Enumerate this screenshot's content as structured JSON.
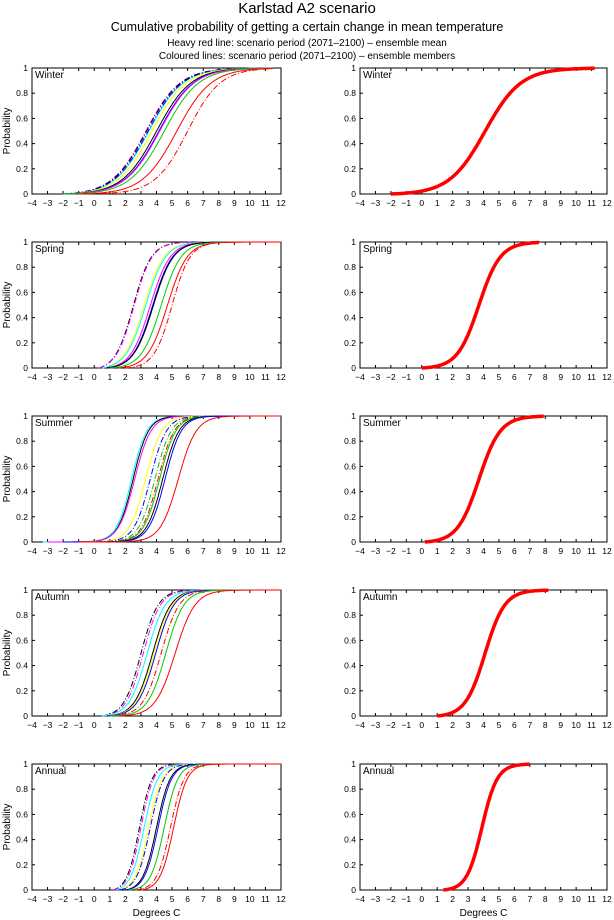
{
  "header": {
    "title": "Karlstad A2 scenario",
    "subtitle": "Cumulative probability of getting a certain change in mean temperature",
    "note_mean": "Heavy red line: scenario period (2071–2100) – ensemble mean",
    "note_members": "Coloured lines: scenario period (2071–2100) – ensemble members"
  },
  "axes_common": {
    "ylabel": "Probability",
    "xlabel": "Degrees C",
    "xlim": [
      -4,
      12
    ],
    "ylim": [
      0,
      1
    ],
    "xticks": [
      "−4",
      "−3",
      "−2",
      "−1",
      "0",
      "1",
      "2",
      "3",
      "4",
      "5",
      "6",
      "7",
      "8",
      "9",
      "10",
      "11",
      "12"
    ],
    "yticks": [
      "0",
      "0.2",
      "0.4",
      "0.6",
      "0.8",
      "1"
    ],
    "member_colors": [
      "#ff00ff",
      "#00ffff",
      "#0000ff",
      "#000000",
      "#ffff00",
      "#00cc00",
      "#ff0000"
    ],
    "mean_color": "#ff0000"
  },
  "chart_data": [
    {
      "type": "line",
      "title": "Winter",
      "panel": "ensemble-members",
      "xlabel": "",
      "ylabel": "Probability",
      "xlim": [
        -4,
        12
      ],
      "ylim": [
        0,
        1
      ],
      "series": [
        {
          "name": "member-dash-magenta",
          "color": "#ff00ff",
          "style": "dashdot",
          "median": 3.3,
          "spread": 1.9,
          "xmin": -2,
          "xmax": 11.5
        },
        {
          "name": "member-dash-black",
          "color": "#000000",
          "style": "dashdot",
          "median": 3.35,
          "spread": 1.9,
          "xmin": -2,
          "xmax": 11.5
        },
        {
          "name": "member-cyan",
          "color": "#00ffff",
          "style": "solid",
          "median": 3.5,
          "spread": 1.9,
          "xmin": -2,
          "xmax": 11.5
        },
        {
          "name": "member-dash-blue",
          "color": "#0000ff",
          "style": "dashdot",
          "median": 3.45,
          "spread": 1.9,
          "xmin": -2,
          "xmax": 11.5
        },
        {
          "name": "member-yellow",
          "color": "#ffff00",
          "style": "solid",
          "median": 3.7,
          "spread": 1.9,
          "xmin": -2,
          "xmax": 11.5
        },
        {
          "name": "member-black",
          "color": "#000000",
          "style": "solid",
          "median": 4.0,
          "spread": 1.9,
          "xmin": -2,
          "xmax": 11.5
        },
        {
          "name": "member-blue",
          "color": "#0000ff",
          "style": "solid",
          "median": 4.15,
          "spread": 1.9,
          "xmin": -2,
          "xmax": 11.5
        },
        {
          "name": "member-magenta",
          "color": "#ff00ff",
          "style": "solid",
          "median": 4.2,
          "spread": 1.9,
          "xmin": -2,
          "xmax": 11.5
        },
        {
          "name": "member-green",
          "color": "#00cc00",
          "style": "solid",
          "median": 4.5,
          "spread": 1.9,
          "xmin": -2,
          "xmax": 11.5
        },
        {
          "name": "member-red",
          "color": "#ff0000",
          "style": "solid",
          "median": 5.3,
          "spread": 1.9,
          "xmin": -1,
          "xmax": 11.5
        },
        {
          "name": "member-dash-red",
          "color": "#ff0000",
          "style": "dashdot",
          "median": 6.0,
          "spread": 1.8,
          "xmin": -1,
          "xmax": 11.5
        }
      ]
    },
    {
      "type": "line",
      "title": "Winter",
      "panel": "ensemble-mean",
      "xlabel": "",
      "ylabel": "",
      "xlim": [
        -4,
        12
      ],
      "ylim": [
        0,
        1
      ],
      "series": [
        {
          "name": "ensemble-mean",
          "color": "#ff0000",
          "style": "heavy",
          "median": 4.1,
          "spread": 2.0,
          "xmin": -2,
          "xmax": 11.2
        }
      ]
    },
    {
      "type": "line",
      "title": "Spring",
      "panel": "ensemble-members",
      "xlabel": "",
      "ylabel": "Probability",
      "xlim": [
        -4,
        12
      ],
      "ylim": [
        0,
        1
      ],
      "series": [
        {
          "name": "member-dash-black",
          "color": "#000000",
          "style": "dashdot",
          "median": 2.5,
          "spread": 1.0,
          "xmin": 0.3,
          "xmax": 12
        },
        {
          "name": "member-dash-magenta",
          "color": "#ff00ff",
          "style": "dashdot",
          "median": 2.55,
          "spread": 1.0,
          "xmin": 0.3,
          "xmax": 12
        },
        {
          "name": "member-yellow",
          "color": "#ffff00",
          "style": "solid",
          "median": 3.2,
          "spread": 1.1,
          "xmin": 0.5,
          "xmax": 12
        },
        {
          "name": "member-cyan",
          "color": "#00ffff",
          "style": "solid",
          "median": 3.3,
          "spread": 1.1,
          "xmin": 0.5,
          "xmax": 12
        },
        {
          "name": "member-magenta",
          "color": "#ff00ff",
          "style": "solid",
          "median": 3.6,
          "spread": 1.1,
          "xmin": 0.8,
          "xmax": 12
        },
        {
          "name": "member-blue",
          "color": "#0000ff",
          "style": "solid",
          "median": 3.75,
          "spread": 1.1,
          "xmin": 0.8,
          "xmax": 12
        },
        {
          "name": "member-black",
          "color": "#000000",
          "style": "solid",
          "median": 3.8,
          "spread": 1.1,
          "xmin": 0.8,
          "xmax": 12
        },
        {
          "name": "member-green",
          "color": "#00cc00",
          "style": "solid",
          "median": 4.3,
          "spread": 1.1,
          "xmin": 1.0,
          "xmax": 12
        },
        {
          "name": "member-red",
          "color": "#ff0000",
          "style": "solid",
          "median": 4.7,
          "spread": 1.1,
          "xmin": 1.5,
          "xmax": 12
        },
        {
          "name": "member-dash-red",
          "color": "#ff0000",
          "style": "dashdot",
          "median": 5.0,
          "spread": 1.0,
          "xmin": 2.0,
          "xmax": 12
        }
      ]
    },
    {
      "type": "line",
      "title": "Spring",
      "panel": "ensemble-mean",
      "xlabel": "",
      "ylabel": "",
      "xlim": [
        -4,
        12
      ],
      "ylim": [
        0,
        1
      ],
      "series": [
        {
          "name": "ensemble-mean",
          "color": "#ff0000",
          "style": "heavy",
          "median": 3.7,
          "spread": 1.2,
          "xmin": 0,
          "xmax": 7.6
        }
      ]
    },
    {
      "type": "line",
      "title": "Summer",
      "panel": "ensemble-members",
      "xlabel": "",
      "ylabel": "Probability",
      "xlim": [
        -4,
        12
      ],
      "ylim": [
        0,
        1
      ],
      "series": [
        {
          "name": "member-cyan",
          "color": "#00ffff",
          "style": "solid",
          "median": 2.4,
          "spread": 0.85,
          "xmin": -3.3,
          "xmax": 12
        },
        {
          "name": "member-black",
          "color": "#000000",
          "style": "solid",
          "median": 2.5,
          "spread": 0.85,
          "xmin": -3,
          "xmax": 12
        },
        {
          "name": "member-magenta",
          "color": "#ff00ff",
          "style": "solid",
          "median": 2.6,
          "spread": 0.9,
          "xmin": -3,
          "xmax": 12
        },
        {
          "name": "member-yellow",
          "color": "#ffff00",
          "style": "solid",
          "median": 3.3,
          "spread": 0.9,
          "xmin": -2,
          "xmax": 12
        },
        {
          "name": "member-dash-blue",
          "color": "#0000ff",
          "style": "dashdot",
          "median": 3.6,
          "spread": 0.9,
          "xmin": -2,
          "xmax": 12
        },
        {
          "name": "member-dash-green",
          "color": "#00cc00",
          "style": "dashdot",
          "median": 3.9,
          "spread": 0.9,
          "xmin": -2,
          "xmax": 12
        },
        {
          "name": "member-dash-red",
          "color": "#ff0000",
          "style": "dashdot",
          "median": 4.1,
          "spread": 0.9,
          "xmin": -2,
          "xmax": 12
        },
        {
          "name": "member-green",
          "color": "#00cc00",
          "style": "solid",
          "median": 4.2,
          "spread": 0.9,
          "xmin": -2,
          "xmax": 12
        },
        {
          "name": "member-black-2",
          "color": "#000000",
          "style": "solid",
          "median": 4.4,
          "spread": 0.9,
          "xmin": -2,
          "xmax": 12
        },
        {
          "name": "member-blue",
          "color": "#0000ff",
          "style": "solid",
          "median": 4.55,
          "spread": 0.9,
          "xmin": -2,
          "xmax": 12
        },
        {
          "name": "member-red",
          "color": "#ff0000",
          "style": "solid",
          "median": 5.4,
          "spread": 1.0,
          "xmin": -1,
          "xmax": 12
        }
      ]
    },
    {
      "type": "line",
      "title": "Summer",
      "panel": "ensemble-mean",
      "xlabel": "",
      "ylabel": "",
      "xlim": [
        -4,
        12
      ],
      "ylim": [
        0,
        1
      ],
      "series": [
        {
          "name": "ensemble-mean",
          "color": "#ff0000",
          "style": "heavy",
          "median": 3.7,
          "spread": 1.2,
          "xmin": 0.2,
          "xmax": 7.9
        }
      ]
    },
    {
      "type": "line",
      "title": "Autumn",
      "panel": "ensemble-members",
      "xlabel": "",
      "ylabel": "Probability",
      "xlim": [
        -4,
        12
      ],
      "ylim": [
        0,
        1
      ],
      "series": [
        {
          "name": "member-dash-black",
          "color": "#000000",
          "style": "dashdot",
          "median": 3.0,
          "spread": 0.95,
          "xmin": 0.5,
          "xmax": 12
        },
        {
          "name": "member-dash-magenta",
          "color": "#ff00ff",
          "style": "dashdot",
          "median": 3.15,
          "spread": 0.95,
          "xmin": 0.5,
          "xmax": 12
        },
        {
          "name": "member-cyan",
          "color": "#00ffff",
          "style": "solid",
          "median": 3.4,
          "spread": 1.0,
          "xmin": 0.5,
          "xmax": 12
        },
        {
          "name": "member-black",
          "color": "#000000",
          "style": "solid",
          "median": 3.75,
          "spread": 1.0,
          "xmin": 0.8,
          "xmax": 12
        },
        {
          "name": "member-yellow",
          "color": "#ffff00",
          "style": "solid",
          "median": 3.85,
          "spread": 1.0,
          "xmin": 0.8,
          "xmax": 12
        },
        {
          "name": "member-blue",
          "color": "#0000ff",
          "style": "solid",
          "median": 3.95,
          "spread": 1.0,
          "xmin": 0.8,
          "xmax": 12
        },
        {
          "name": "member-dash-red",
          "color": "#ff0000",
          "style": "dashdot",
          "median": 4.3,
          "spread": 1.0,
          "xmin": 1.0,
          "xmax": 12
        },
        {
          "name": "member-green",
          "color": "#00cc00",
          "style": "solid",
          "median": 4.6,
          "spread": 1.0,
          "xmin": 1.0,
          "xmax": 12
        },
        {
          "name": "member-red",
          "color": "#ff0000",
          "style": "solid",
          "median": 5.2,
          "spread": 1.1,
          "xmin": 1.5,
          "xmax": 12
        }
      ]
    },
    {
      "type": "line",
      "title": "Autumn",
      "panel": "ensemble-mean",
      "xlabel": "",
      "ylabel": "",
      "xlim": [
        -4,
        12
      ],
      "ylim": [
        0,
        1
      ],
      "series": [
        {
          "name": "ensemble-mean",
          "color": "#ff0000",
          "style": "heavy",
          "median": 4.1,
          "spread": 1.1,
          "xmin": 1.0,
          "xmax": 8.2
        }
      ]
    },
    {
      "type": "line",
      "title": "Annual",
      "panel": "ensemble-members",
      "xlabel": "Degrees C",
      "ylabel": "Probability",
      "xlim": [
        -4,
        12
      ],
      "ylim": [
        0,
        1
      ],
      "series": [
        {
          "name": "member-dash-black",
          "color": "#000000",
          "style": "dashdot",
          "median": 2.9,
          "spread": 0.7,
          "xmin": 1.2,
          "xmax": 12
        },
        {
          "name": "member-dash-magenta",
          "color": "#ff00ff",
          "style": "dashdot",
          "median": 3.0,
          "spread": 0.7,
          "xmin": 1.2,
          "xmax": 12
        },
        {
          "name": "member-cyan",
          "color": "#00ffff",
          "style": "solid",
          "median": 3.2,
          "spread": 0.75,
          "xmin": 1.4,
          "xmax": 12
        },
        {
          "name": "member-yellow",
          "color": "#ffff00",
          "style": "solid",
          "median": 3.5,
          "spread": 0.75,
          "xmin": 1.6,
          "xmax": 12
        },
        {
          "name": "member-dash-blue",
          "color": "#0000ff",
          "style": "dashdot",
          "median": 3.6,
          "spread": 0.75,
          "xmin": 1.6,
          "xmax": 12
        },
        {
          "name": "member-black",
          "color": "#000000",
          "style": "solid",
          "median": 4.0,
          "spread": 0.75,
          "xmin": 2.0,
          "xmax": 12
        },
        {
          "name": "member-blue",
          "color": "#0000ff",
          "style": "solid",
          "median": 4.1,
          "spread": 0.75,
          "xmin": 2.0,
          "xmax": 12
        },
        {
          "name": "member-green",
          "color": "#00cc00",
          "style": "solid",
          "median": 4.5,
          "spread": 0.75,
          "xmin": 2.2,
          "xmax": 12
        },
        {
          "name": "member-dash-red",
          "color": "#ff0000",
          "style": "dashdot",
          "median": 4.9,
          "spread": 0.75,
          "xmin": 2.6,
          "xmax": 12
        },
        {
          "name": "member-red",
          "color": "#ff0000",
          "style": "solid",
          "median": 5.1,
          "spread": 0.75,
          "xmin": 3.0,
          "xmax": 12
        }
      ]
    },
    {
      "type": "line",
      "title": "Annual",
      "panel": "ensemble-mean",
      "xlabel": "Degrees C",
      "ylabel": "",
      "xlim": [
        -4,
        12
      ],
      "ylim": [
        0,
        1
      ],
      "series": [
        {
          "name": "ensemble-mean",
          "color": "#ff0000",
          "style": "heavy",
          "median": 3.9,
          "spread": 0.85,
          "xmin": 1.4,
          "xmax": 7.0
        }
      ]
    }
  ]
}
